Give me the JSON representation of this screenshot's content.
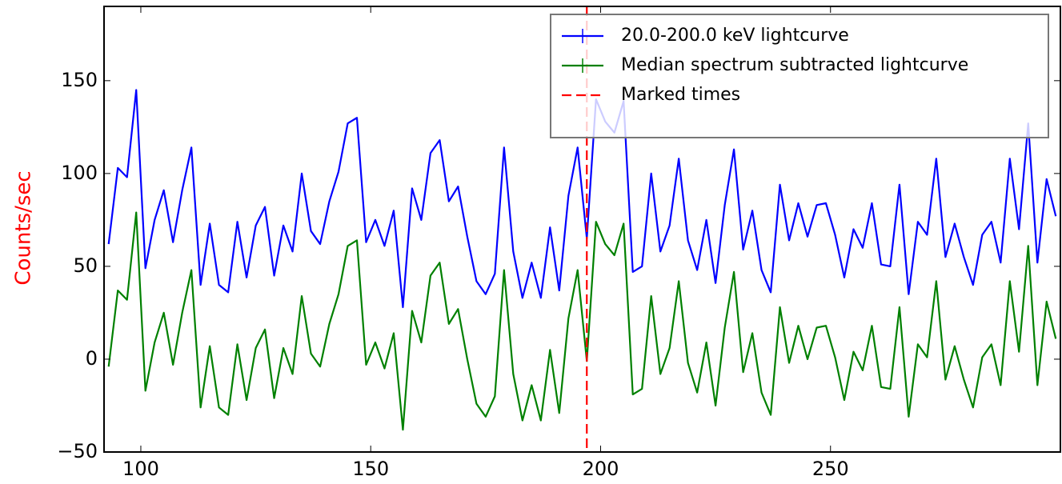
{
  "chart_data": {
    "type": "line",
    "y_label": "Counts/sec",
    "y_label_color": "#ff0000",
    "x": [
      93,
      95,
      97,
      99,
      101,
      103,
      105,
      107,
      109,
      111,
      113,
      115,
      117,
      119,
      121,
      123,
      125,
      127,
      129,
      131,
      133,
      135,
      137,
      139,
      141,
      143,
      145,
      147,
      149,
      151,
      153,
      155,
      157,
      159,
      161,
      163,
      165,
      167,
      169,
      171,
      173,
      175,
      177,
      179,
      181,
      183,
      185,
      187,
      189,
      191,
      193,
      195,
      197,
      199,
      201,
      203,
      205,
      207,
      209,
      211,
      213,
      215,
      217,
      219,
      221,
      223,
      225,
      227,
      229,
      231,
      233,
      235,
      237,
      239,
      241,
      243,
      245,
      247,
      249,
      251,
      253,
      255,
      257,
      259,
      261,
      263,
      265,
      267,
      269,
      271,
      273,
      275,
      277,
      279,
      281,
      283,
      285,
      287,
      289,
      291,
      293,
      295,
      297,
      299
    ],
    "series": [
      {
        "name": "20.0-200.0 keV lightcurve",
        "color": "#0000ff",
        "values": [
          62,
          103,
          98,
          145,
          49,
          75,
          91,
          63,
          91,
          114,
          40,
          73,
          40,
          36,
          74,
          44,
          72,
          82,
          45,
          72,
          58,
          100,
          69,
          62,
          85,
          101,
          127,
          130,
          63,
          75,
          61,
          80,
          28,
          92,
          75,
          111,
          118,
          85,
          93,
          66,
          42,
          35,
          46,
          114,
          58,
          33,
          52,
          33,
          71,
          37,
          88,
          114,
          65,
          140,
          128,
          122,
          139,
          47,
          50,
          100,
          58,
          72,
          108,
          64,
          48,
          75,
          41,
          83,
          113,
          59,
          80,
          48,
          36,
          94,
          64,
          84,
          66,
          83,
          84,
          67,
          44,
          70,
          60,
          84,
          51,
          50,
          94,
          35,
          74,
          67,
          108,
          55,
          73,
          55,
          40,
          67,
          74,
          52,
          108,
          70,
          127,
          52,
          97,
          77
        ]
      },
      {
        "name": "Median spectrum subtracted lightcurve",
        "color": "#008000",
        "values": [
          -4,
          37,
          32,
          79,
          -17,
          9,
          25,
          -3,
          25,
          48,
          -26,
          7,
          -26,
          -30,
          8,
          -22,
          6,
          16,
          -21,
          6,
          -8,
          34,
          3,
          -4,
          19,
          35,
          61,
          64,
          -3,
          9,
          -5,
          14,
          -38,
          26,
          9,
          45,
          52,
          19,
          27,
          0,
          -24,
          -31,
          -20,
          48,
          -8,
          -33,
          -14,
          -33,
          5,
          -29,
          22,
          48,
          -1,
          74,
          62,
          56,
          73,
          -19,
          -16,
          34,
          -8,
          6,
          42,
          -2,
          -18,
          9,
          -25,
          17,
          47,
          -7,
          14,
          -18,
          -30,
          28,
          -2,
          18,
          0,
          17,
          18,
          1,
          -22,
          4,
          -6,
          18,
          -15,
          -16,
          28,
          -31,
          8,
          1,
          42,
          -11,
          7,
          -11,
          -26,
          1,
          8,
          -14,
          42,
          4,
          61,
          -14,
          31,
          11
        ]
      }
    ],
    "markers": {
      "name": "Marked times",
      "color": "#ff0000",
      "x": [
        197
      ]
    },
    "xlim": [
      92,
      300
    ],
    "xticks": [
      100,
      150,
      200,
      250
    ],
    "ylim": [
      -50,
      190
    ],
    "yticks": [
      {
        "value": -50,
        "label": "−50"
      },
      0,
      50,
      100,
      150
    ]
  }
}
